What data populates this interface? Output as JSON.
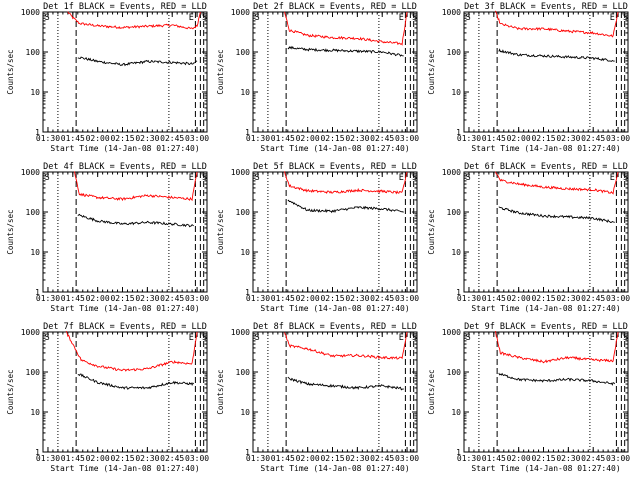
{
  "chart_data": [
    {
      "type": "line",
      "title": "Det 1f BLACK = Events, RED = LLD",
      "xlabel": "Start Time (14-Jan-08 01:27:40)",
      "ylabel": "Counts/sec",
      "x_tick_labels": [
        "01:30",
        "01:45",
        "02:00",
        "02:15",
        "02:30",
        "02:45",
        "03:00"
      ],
      "y_tick_labels": [
        "1",
        "10",
        "100",
        "1000"
      ],
      "ylim": [
        1,
        1000
      ],
      "yscale": "log",
      "markers": [
        "S",
        "E",
        "S"
      ],
      "legend": "none",
      "grid": false,
      "series": [
        {
          "name": "LLD",
          "color": "#ff0000",
          "x": [
            "01:42",
            "01:45",
            "01:49",
            "02:00",
            "02:15",
            "02:30",
            "02:45",
            "02:57",
            "03:00",
            "03:02"
          ],
          "y": [
            1000,
            720,
            520,
            450,
            410,
            440,
            470,
            380,
            450,
            1000
          ]
        },
        {
          "name": "Events",
          "color": "#000000",
          "x": [
            "01:48",
            "02:00",
            "02:15",
            "02:30",
            "02:45",
            "02:58",
            "03:00"
          ],
          "y": [
            75,
            58,
            48,
            58,
            55,
            50,
            60
          ]
        }
      ]
    },
    {
      "type": "line",
      "title": "Det 2f BLACK = Events, RED = LLD",
      "xlabel": "Start Time (14-Jan-08 01:27:40)",
      "ylabel": "Counts/sec",
      "x_tick_labels": [
        "01:30",
        "01:45",
        "02:00",
        "02:15",
        "02:30",
        "02:45",
        "03:00"
      ],
      "y_tick_labels": [
        "1",
        "10",
        "100",
        "1000"
      ],
      "ylim": [
        1,
        1000
      ],
      "yscale": "log",
      "markers": [
        "S",
        "E",
        "S"
      ],
      "legend": "none",
      "grid": false,
      "series": [
        {
          "name": "LLD",
          "color": "#ff0000",
          "x": [
            "01:46",
            "01:49",
            "02:00",
            "02:15",
            "02:30",
            "02:45",
            "02:57",
            "03:00"
          ],
          "y": [
            1000,
            350,
            260,
            230,
            220,
            180,
            160,
            1000
          ]
        },
        {
          "name": "Events",
          "color": "#000000",
          "x": [
            "01:48",
            "02:00",
            "02:15",
            "02:30",
            "02:45",
            "02:58"
          ],
          "y": [
            130,
            115,
            110,
            105,
            100,
            80
          ]
        }
      ]
    },
    {
      "type": "line",
      "title": "Det 3f BLACK = Events, RED = LLD",
      "xlabel": "Start Time (14-Jan-08 01:27:40)",
      "ylabel": "Counts/sec",
      "x_tick_labels": [
        "01:30",
        "01:45",
        "02:00",
        "02:15",
        "02:30",
        "02:45",
        "03:00"
      ],
      "y_tick_labels": [
        "1",
        "10",
        "100",
        "1000"
      ],
      "ylim": [
        1,
        1000
      ],
      "yscale": "log",
      "markers": [
        "S",
        "E",
        "S"
      ],
      "legend": "none",
      "grid": false,
      "series": [
        {
          "name": "LLD",
          "color": "#ff0000",
          "x": [
            "01:46",
            "01:49",
            "02:00",
            "02:15",
            "02:30",
            "02:45",
            "02:57",
            "03:00"
          ],
          "y": [
            1000,
            500,
            380,
            380,
            330,
            300,
            250,
            1000
          ]
        },
        {
          "name": "Events",
          "color": "#000000",
          "x": [
            "01:48",
            "02:00",
            "02:15",
            "02:30",
            "02:45",
            "02:58"
          ],
          "y": [
            110,
            85,
            80,
            75,
            70,
            60
          ]
        }
      ]
    },
    {
      "type": "line",
      "title": "Det 4f BLACK = Events, RED = LLD",
      "xlabel": "Start Time (14-Jan-08 01:27:40)",
      "ylabel": "Counts/sec",
      "x_tick_labels": [
        "01:30",
        "01:45",
        "02:00",
        "02:15",
        "02:30",
        "02:45",
        "03:00"
      ],
      "y_tick_labels": [
        "1",
        "10",
        "100",
        "1000"
      ],
      "ylim": [
        1,
        1000
      ],
      "yscale": "log",
      "markers": [
        "S",
        "E",
        "S"
      ],
      "legend": "none",
      "grid": false,
      "series": [
        {
          "name": "LLD",
          "color": "#ff0000",
          "x": [
            "01:46",
            "01:49",
            "02:00",
            "02:15",
            "02:30",
            "02:45",
            "02:57",
            "03:00"
          ],
          "y": [
            1000,
            280,
            230,
            210,
            260,
            230,
            210,
            1000
          ]
        },
        {
          "name": "Events",
          "color": "#000000",
          "x": [
            "01:48",
            "02:00",
            "02:15",
            "02:30",
            "02:45",
            "02:58"
          ],
          "y": [
            85,
            60,
            50,
            55,
            50,
            45
          ]
        }
      ]
    },
    {
      "type": "line",
      "title": "Det 5f BLACK = Events, RED = LLD",
      "xlabel": "Start Time (14-Jan-08 01:27:40)",
      "ylabel": "Counts/sec",
      "x_tick_labels": [
        "01:30",
        "01:45",
        "02:00",
        "02:15",
        "02:30",
        "02:45",
        "03:00"
      ],
      "y_tick_labels": [
        "1",
        "10",
        "100",
        "1000"
      ],
      "ylim": [
        1,
        1000
      ],
      "yscale": "log",
      "markers": [
        "S",
        "E",
        "S"
      ],
      "legend": "none",
      "grid": false,
      "series": [
        {
          "name": "LLD",
          "color": "#ff0000",
          "x": [
            "01:46",
            "01:49",
            "02:00",
            "02:15",
            "02:30",
            "02:45",
            "02:57",
            "03:00"
          ],
          "y": [
            1000,
            450,
            340,
            310,
            350,
            330,
            300,
            1000
          ]
        },
        {
          "name": "Events",
          "color": "#000000",
          "x": [
            "01:48",
            "02:00",
            "02:15",
            "02:30",
            "02:45",
            "02:58"
          ],
          "y": [
            200,
            110,
            105,
            130,
            120,
            100
          ]
        }
      ]
    },
    {
      "type": "line",
      "title": "Det 6f BLACK = Events, RED = LLD",
      "xlabel": "Start Time (14-Jan-08 01:27:40)",
      "ylabel": "Counts/sec",
      "x_tick_labels": [
        "01:30",
        "01:45",
        "02:00",
        "02:15",
        "02:30",
        "02:45",
        "03:00"
      ],
      "y_tick_labels": [
        "1",
        "10",
        "100",
        "1000"
      ],
      "ylim": [
        1,
        1000
      ],
      "yscale": "log",
      "markers": [
        "S",
        "E",
        "S"
      ],
      "legend": "none",
      "grid": false,
      "series": [
        {
          "name": "LLD",
          "color": "#ff0000",
          "x": [
            "01:46",
            "01:49",
            "02:00",
            "02:15",
            "02:30",
            "02:45",
            "02:57",
            "03:00"
          ],
          "y": [
            1000,
            620,
            500,
            420,
            380,
            360,
            300,
            1000
          ]
        },
        {
          "name": "Events",
          "color": "#000000",
          "x": [
            "01:48",
            "02:00",
            "02:15",
            "02:30",
            "02:45",
            "02:58"
          ],
          "y": [
            130,
            95,
            80,
            75,
            70,
            55
          ]
        }
      ]
    },
    {
      "type": "line",
      "title": "Det 7f BLACK = Events, RED = LLD",
      "xlabel": "Start Time (14-Jan-08 01:27:40)",
      "ylabel": "Counts/sec",
      "x_tick_labels": [
        "01:30",
        "01:45",
        "02:00",
        "02:15",
        "02:30",
        "02:45",
        "03:00"
      ],
      "y_tick_labels": [
        "1",
        "10",
        "100",
        "1000"
      ],
      "ylim": [
        1,
        1000
      ],
      "yscale": "log",
      "markers": [
        "S",
        "E",
        "S"
      ],
      "legend": "none",
      "grid": false,
      "series": [
        {
          "name": "LLD",
          "color": "#ff0000",
          "x": [
            "01:41",
            "01:45",
            "01:50",
            "02:00",
            "02:15",
            "02:30",
            "02:45",
            "02:57",
            "03:00"
          ],
          "y": [
            1000,
            500,
            200,
            140,
            110,
            120,
            180,
            160,
            1000
          ]
        },
        {
          "name": "Events",
          "color": "#000000",
          "x": [
            "01:48",
            "02:00",
            "02:15",
            "02:30",
            "02:45",
            "02:58"
          ],
          "y": [
            90,
            55,
            40,
            40,
            55,
            50
          ]
        }
      ]
    },
    {
      "type": "line",
      "title": "Det 8f BLACK = Events, RED = LLD",
      "xlabel": "Start Time (14-Jan-08 01:27:40)",
      "ylabel": "Counts/sec",
      "x_tick_labels": [
        "01:30",
        "01:45",
        "02:00",
        "02:15",
        "02:30",
        "02:45",
        "03:00"
      ],
      "y_tick_labels": [
        "1",
        "10",
        "100",
        "1000"
      ],
      "ylim": [
        1,
        1000
      ],
      "yscale": "log",
      "markers": [
        "S",
        "E",
        "S"
      ],
      "legend": "none",
      "grid": false,
      "series": [
        {
          "name": "LLD",
          "color": "#ff0000",
          "x": [
            "01:46",
            "01:49",
            "02:00",
            "02:15",
            "02:30",
            "02:45",
            "02:57",
            "03:00"
          ],
          "y": [
            1000,
            450,
            380,
            250,
            260,
            230,
            220,
            1000
          ]
        },
        {
          "name": "Events",
          "color": "#000000",
          "x": [
            "01:48",
            "02:00",
            "02:15",
            "02:30",
            "02:45",
            "02:58"
          ],
          "y": [
            70,
            50,
            45,
            40,
            45,
            38
          ]
        }
      ]
    },
    {
      "type": "line",
      "title": "Det 9f BLACK = Events, RED = LLD",
      "xlabel": "Start Time (14-Jan-08 01:27:40)",
      "ylabel": "Counts/sec",
      "x_tick_labels": [
        "01:30",
        "01:45",
        "02:00",
        "02:15",
        "02:30",
        "02:45",
        "03:00"
      ],
      "y_tick_labels": [
        "1",
        "10",
        "100",
        "1000"
      ],
      "ylim": [
        1,
        1000
      ],
      "yscale": "log",
      "markers": [
        "S",
        "E",
        "S"
      ],
      "legend": "none",
      "grid": false,
      "series": [
        {
          "name": "LLD",
          "color": "#ff0000",
          "x": [
            "01:46",
            "01:49",
            "02:00",
            "02:15",
            "02:30",
            "02:45",
            "02:57",
            "03:00"
          ],
          "y": [
            1000,
            300,
            230,
            180,
            230,
            200,
            190,
            1000
          ]
        },
        {
          "name": "Events",
          "color": "#000000",
          "x": [
            "01:48",
            "02:00",
            "02:15",
            "02:30",
            "02:45",
            "02:58"
          ],
          "y": [
            90,
            65,
            60,
            65,
            60,
            50
          ]
        }
      ]
    }
  ]
}
